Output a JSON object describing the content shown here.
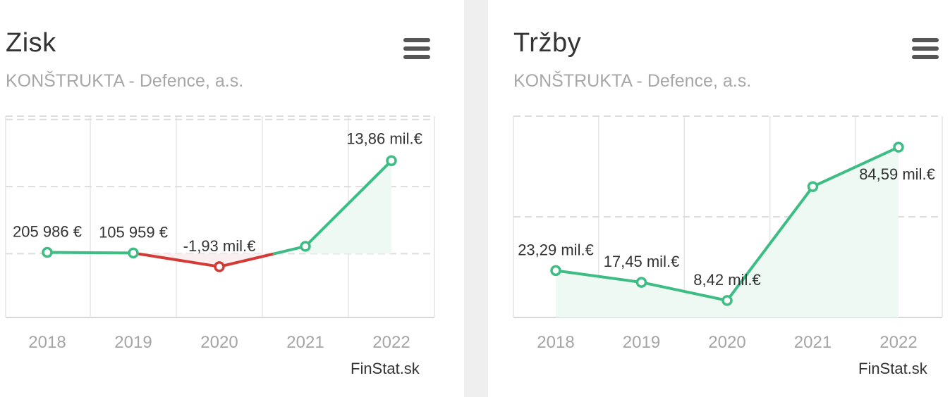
{
  "chart_data": [
    {
      "type": "line",
      "title": "Zisk",
      "subtitle": "KONŠTRUKTA - Defence, a.s.",
      "categories": [
        "2018",
        "2019",
        "2020",
        "2021",
        "2022"
      ],
      "values": [
        0.205986,
        0.105959,
        -1.93,
        1.1,
        13.86
      ],
      "unit": "mil.€",
      "data_labels": [
        "205 986 €",
        "105 959 €",
        "-1,93 mil.€",
        "",
        "13,86 mil.€"
      ],
      "ylim": [
        -9.5,
        20.5
      ],
      "gridlines_y": [
        0,
        10,
        20
      ],
      "negative_segment_color": "#d33a36",
      "positive_color": "#3dbd84",
      "grid": true,
      "credit": "FinStat.sk"
    },
    {
      "type": "line",
      "title": "Tržby",
      "subtitle": "KONŠTRUKTA - Defence, a.s.",
      "categories": [
        "2018",
        "2019",
        "2020",
        "2021",
        "2022"
      ],
      "values": [
        23.29,
        17.45,
        8.42,
        65.0,
        84.59
      ],
      "unit": "mil.€",
      "data_labels": [
        "23,29 mil.€",
        "17,45 mil.€",
        "8,42 mil.€",
        "",
        "84,59 mil.€"
      ],
      "ylim": [
        0,
        100
      ],
      "gridlines_y": [
        50,
        100
      ],
      "positive_color": "#3dbd84",
      "grid": true,
      "credit": "FinStat.sk"
    }
  ],
  "icons": {
    "menu": "hamburger-menu-icon"
  }
}
